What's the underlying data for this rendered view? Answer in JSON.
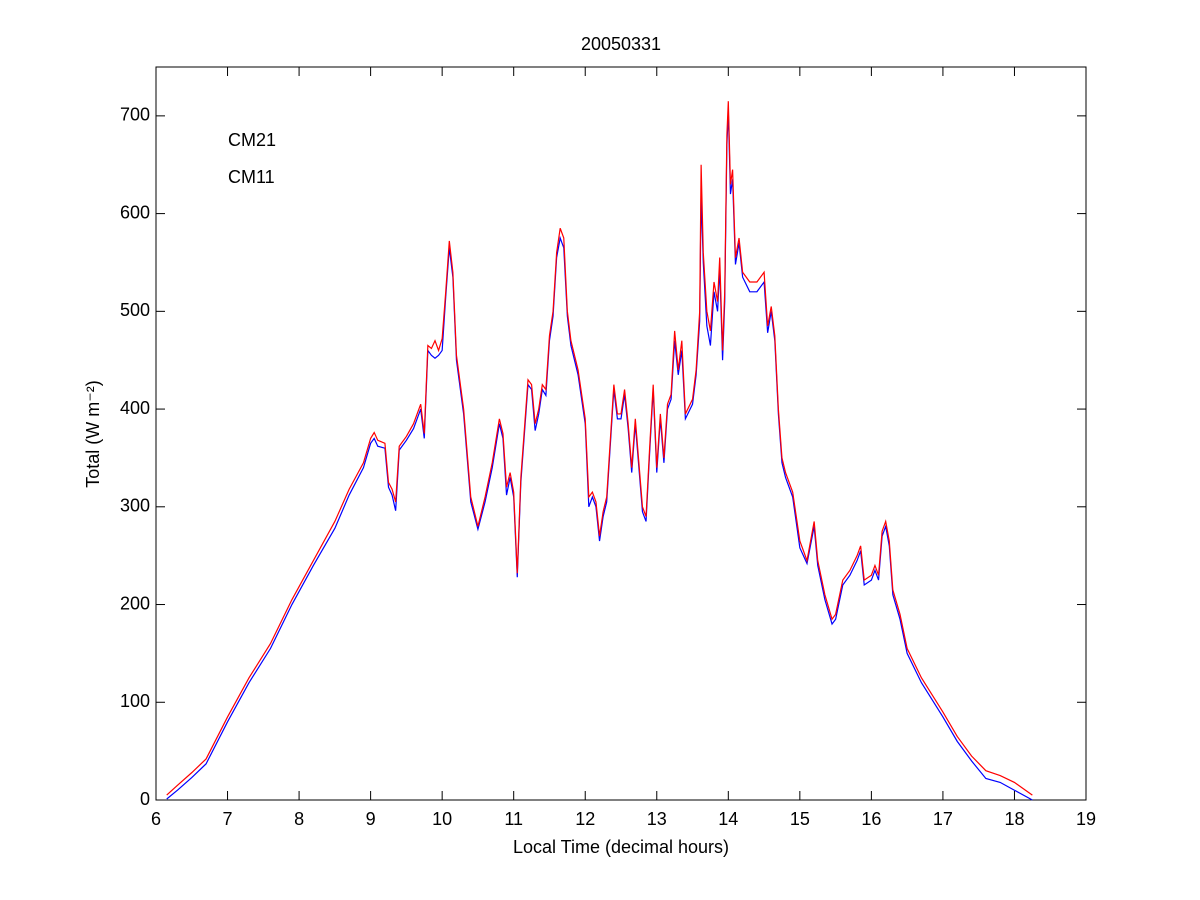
{
  "chart_data": {
    "type": "line",
    "title": "20050331",
    "xlabel": "Local Time (decimal hours)",
    "ylabel": "Total (W m⁻²)",
    "xlim": [
      6,
      19
    ],
    "ylim": [
      0,
      750
    ],
    "xticks": [
      6,
      7,
      8,
      9,
      10,
      11,
      12,
      13,
      14,
      15,
      16,
      17,
      18,
      19
    ],
    "yticks": [
      0,
      100,
      200,
      300,
      400,
      500,
      600,
      700
    ],
    "legend": "upper left",
    "grid": false,
    "x": [
      6.15,
      6.3,
      6.5,
      6.7,
      7.0,
      7.3,
      7.6,
      7.9,
      8.2,
      8.5,
      8.7,
      8.9,
      9.0,
      9.05,
      9.1,
      9.2,
      9.25,
      9.3,
      9.35,
      9.4,
      9.5,
      9.6,
      9.7,
      9.75,
      9.8,
      9.85,
      9.9,
      9.95,
      10.0,
      10.05,
      10.1,
      10.15,
      10.2,
      10.3,
      10.4,
      10.5,
      10.6,
      10.7,
      10.8,
      10.85,
      10.9,
      10.95,
      11.0,
      11.05,
      11.1,
      11.2,
      11.25,
      11.3,
      11.35,
      11.4,
      11.45,
      11.5,
      11.55,
      11.6,
      11.65,
      11.7,
      11.75,
      11.8,
      11.9,
      12.0,
      12.05,
      12.1,
      12.15,
      12.2,
      12.25,
      12.3,
      12.4,
      12.45,
      12.5,
      12.55,
      12.6,
      12.65,
      12.7,
      12.8,
      12.85,
      12.9,
      12.95,
      13.0,
      13.05,
      13.1,
      13.15,
      13.2,
      13.25,
      13.3,
      13.35,
      13.4,
      13.5,
      13.55,
      13.6,
      13.62,
      13.65,
      13.7,
      13.75,
      13.8,
      13.85,
      13.88,
      13.92,
      13.95,
      13.98,
      14.0,
      14.03,
      14.06,
      14.1,
      14.15,
      14.2,
      14.3,
      14.4,
      14.5,
      14.55,
      14.6,
      14.65,
      14.7,
      14.75,
      14.8,
      14.9,
      15.0,
      15.1,
      15.2,
      15.25,
      15.35,
      15.45,
      15.5,
      15.6,
      15.7,
      15.8,
      15.85,
      15.9,
      16.0,
      16.05,
      16.1,
      16.15,
      16.2,
      16.25,
      16.3,
      16.4,
      16.5,
      16.7,
      17.0,
      17.2,
      17.4,
      17.6,
      17.8,
      18.0,
      18.25
    ],
    "series": [
      {
        "name": "CM21",
        "color": "#0000ff",
        "values": [
          1,
          10,
          23,
          37,
          80,
          120,
          155,
          200,
          240,
          278,
          312,
          340,
          365,
          370,
          362,
          360,
          320,
          312,
          296,
          358,
          368,
          380,
          400,
          370,
          460,
          455,
          452,
          455,
          460,
          515,
          565,
          535,
          450,
          395,
          305,
          277,
          305,
          340,
          385,
          370,
          312,
          330,
          310,
          228,
          325,
          425,
          420,
          378,
          395,
          420,
          414,
          470,
          495,
          555,
          575,
          565,
          495,
          465,
          435,
          385,
          300,
          310,
          300,
          265,
          290,
          305,
          420,
          390,
          390,
          415,
          380,
          335,
          385,
          295,
          285,
          355,
          420,
          335,
          390,
          345,
          400,
          410,
          470,
          435,
          460,
          390,
          405,
          435,
          490,
          620,
          550,
          485,
          465,
          520,
          500,
          545,
          450,
          510,
          670,
          705,
          620,
          635,
          548,
          570,
          535,
          520,
          520,
          530,
          478,
          500,
          470,
          395,
          345,
          330,
          310,
          258,
          242,
          280,
          240,
          205,
          180,
          185,
          220,
          230,
          245,
          255,
          220,
          225,
          235,
          225,
          270,
          280,
          260,
          210,
          185,
          150,
          120,
          85,
          60,
          40,
          22,
          18,
          10,
          0
        ]
      },
      {
        "name": "CM11",
        "color": "#ff0000",
        "values": [
          5,
          15,
          28,
          42,
          85,
          125,
          160,
          205,
          245,
          285,
          318,
          345,
          370,
          376,
          368,
          365,
          325,
          318,
          305,
          362,
          372,
          385,
          405,
          375,
          465,
          462,
          470,
          460,
          472,
          520,
          572,
          540,
          455,
          400,
          310,
          280,
          310,
          345,
          390,
          375,
          320,
          335,
          315,
          232,
          330,
          430,
          425,
          385,
          400,
          425,
          420,
          475,
          500,
          560,
          585,
          575,
          500,
          470,
          440,
          390,
          310,
          315,
          305,
          270,
          295,
          310,
          425,
          395,
          395,
          420,
          385,
          340,
          390,
          300,
          290,
          360,
          425,
          340,
          395,
          350,
          405,
          415,
          480,
          440,
          470,
          395,
          410,
          440,
          500,
          650,
          560,
          500,
          480,
          530,
          510,
          555,
          460,
          520,
          680,
          715,
          630,
          645,
          555,
          575,
          540,
          530,
          530,
          540,
          485,
          505,
          475,
          400,
          350,
          335,
          315,
          265,
          245,
          285,
          245,
          210,
          185,
          190,
          225,
          235,
          250,
          260,
          225,
          230,
          240,
          230,
          275,
          285,
          265,
          215,
          190,
          155,
          125,
          90,
          65,
          45,
          30,
          25,
          18,
          5
        ]
      }
    ]
  }
}
